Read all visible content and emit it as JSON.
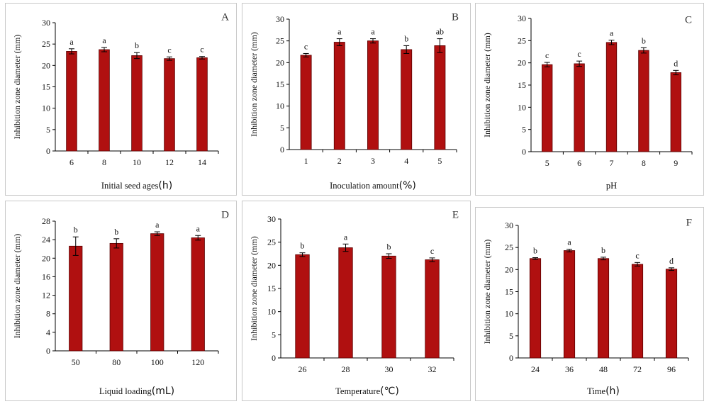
{
  "colors": {
    "bar": "#b01010",
    "bar_edge": "#5a0000",
    "axis": "#000000",
    "panel_border": "#c8c8c8"
  },
  "chart_data": [
    {
      "type": "bar",
      "panel_label": "A",
      "xlabel": "Initial seed ages",
      "xlabel_unit": "(h)",
      "ylabel": "Inhibition zone diameter (mm)",
      "categories": [
        "6",
        "8",
        "10",
        "12",
        "14"
      ],
      "values": [
        23.3,
        23.7,
        22.3,
        21.6,
        21.8
      ],
      "errors": [
        0.6,
        0.5,
        0.7,
        0.4,
        0.3
      ],
      "significance": [
        "a",
        "a",
        "b",
        "c",
        "c"
      ],
      "ylim": [
        0,
        30
      ],
      "yticks": [
        0,
        5,
        10,
        15,
        20,
        25,
        30
      ]
    },
    {
      "type": "bar",
      "panel_label": "B",
      "xlabel": "Inoculation amount",
      "xlabel_unit": "(%)",
      "ylabel": "Inhibition zone diameter (mm)",
      "categories": [
        "1",
        "2",
        "3",
        "4",
        "5"
      ],
      "values": [
        21.7,
        24.7,
        25.0,
        23.0,
        23.9
      ],
      "errors": [
        0.4,
        0.8,
        0.5,
        0.9,
        1.6
      ],
      "significance": [
        "c",
        "a",
        "a",
        "b",
        "ab"
      ],
      "ylim": [
        0,
        30
      ],
      "yticks": [
        0,
        5,
        10,
        15,
        20,
        25,
        30
      ]
    },
    {
      "type": "bar",
      "panel_label": "C",
      "xlabel": "pH",
      "xlabel_unit": "",
      "ylabel": "Inhibition zone diameter (mm)",
      "categories": [
        "5",
        "6",
        "7",
        "8",
        "9"
      ],
      "values": [
        19.6,
        19.8,
        24.6,
        22.8,
        17.8
      ],
      "errors": [
        0.5,
        0.6,
        0.5,
        0.6,
        0.5
      ],
      "significance": [
        "c",
        "c",
        "a",
        "b",
        "d"
      ],
      "ylim": [
        0,
        30
      ],
      "yticks": [
        0,
        5,
        10,
        15,
        20,
        25,
        30
      ]
    },
    {
      "type": "bar",
      "panel_label": "D",
      "xlabel": "Liquid loading",
      "xlabel_unit": "(mL)",
      "ylabel": "Inhibition zone diameter (mm)",
      "categories": [
        "50",
        "80",
        "100",
        "120"
      ],
      "values": [
        22.6,
        23.2,
        25.3,
        24.4
      ],
      "errors": [
        2.0,
        1.0,
        0.4,
        0.5
      ],
      "significance": [
        "b",
        "b",
        "a",
        "a"
      ],
      "ylim": [
        0,
        28
      ],
      "yticks": [
        0,
        4,
        8,
        12,
        16,
        20,
        24,
        28
      ]
    },
    {
      "type": "bar",
      "panel_label": "E",
      "xlabel": "Temperature",
      "xlabel_unit": "(℃)",
      "ylabel": "Inhibition zone diameter (mm)",
      "categories": [
        "26",
        "28",
        "30",
        "32"
      ],
      "values": [
        22.3,
        23.8,
        22.0,
        21.2
      ],
      "errors": [
        0.4,
        0.8,
        0.5,
        0.4
      ],
      "significance": [
        "b",
        "a",
        "b",
        "c"
      ],
      "ylim": [
        0,
        30
      ],
      "yticks": [
        0,
        5,
        10,
        15,
        20,
        25,
        30
      ]
    },
    {
      "type": "bar",
      "panel_label": "F",
      "xlabel": "Time",
      "xlabel_unit": "(h)",
      "ylabel": "Inhibition zone diameter (mm)",
      "categories": [
        "24",
        "36",
        "48",
        "72",
        "96"
      ],
      "values": [
        22.5,
        24.3,
        22.5,
        21.2,
        20.1
      ],
      "errors": [
        0.2,
        0.3,
        0.3,
        0.4,
        0.3
      ],
      "significance": [
        "b",
        "a",
        "b",
        "c",
        "d"
      ],
      "ylim": [
        0,
        30
      ],
      "yticks": [
        0,
        5,
        10,
        15,
        20,
        25,
        30
      ]
    }
  ]
}
